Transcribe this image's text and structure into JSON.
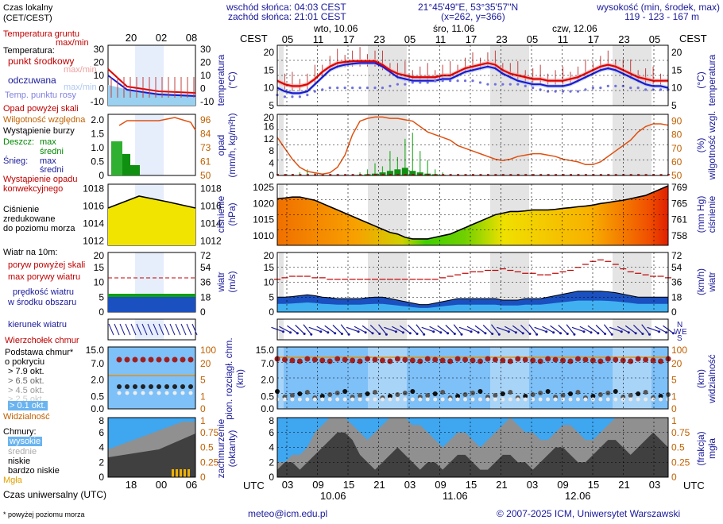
{
  "header": {
    "sunrise": "wschód słońca: 04:03 CEST",
    "sunset": "zachód słońca: 21:01 CEST",
    "coords": "21°45'49\"E, 53°35'57\"N",
    "grid": "(x=262, y=366)",
    "altitude_label": "wysokość (min, środek, max)",
    "altitude_values": "119 - 123 - 167 m",
    "tz_top": "CEST",
    "tz_bottom": "UTC"
  },
  "days_top": [
    "wto, 10.06",
    "śro, 11.06",
    "czw, 12.06"
  ],
  "days_bottom": [
    "10.06",
    "11.06",
    "12.06"
  ],
  "hours_top": [
    "05",
    "11",
    "17",
    "23",
    "05",
    "11",
    "17",
    "23",
    "05",
    "11",
    "17",
    "23",
    "05"
  ],
  "hours_bottom": [
    "03",
    "09",
    "15",
    "21",
    "03",
    "09",
    "15",
    "21",
    "03",
    "09",
    "15",
    "21",
    "03"
  ],
  "legend": {
    "local_time": "Czas lokalny",
    "local_time_2": "(CET/CEST)",
    "legend_hours_top": [
      "20",
      "02",
      "08"
    ],
    "legend_hours_bottom": [
      "18",
      "00",
      "06"
    ],
    "ground_temp": "Temperatura gruntu",
    "ground_temp_2": "max/min",
    "temperature": "Temperatura:",
    "mid_point": "punkt środkowy",
    "max_min": "max/min",
    "felt": "odczuwana",
    "max_min_2": "max/min",
    "dew": "Temp. punktu rosy",
    "precip_above": "Opad powyżej skali",
    "humidity": "Wilgotność względna",
    "storm": "Wystąpienie burzy",
    "rain": "Deszcz:",
    "rain_max": "max",
    "rain_mean": "średni",
    "snow": "Śnieg:",
    "snow_max": "max",
    "snow_mean": "średni",
    "precip_occ": "Wystąpienie opadu",
    "precip_occ_2": "konwekcyjnego",
    "pressure": "Ciśnienie",
    "pressure_2": "zredukowane",
    "pressure_3": "do poziomu morza",
    "wind": "Wiatr na 10m:",
    "gust_above": "poryw powyżej skali",
    "gust_max": "max porywy wiatru",
    "wind_speed": "prędkość wiatru",
    "wind_speed_2": "w środku obszaru",
    "wind_dir": "kierunek wiatru",
    "cloud_top": "Wierzchołek chmur",
    "cloud_base": "Podstawa chmur*",
    "cloud_base_2": "o pokryciu",
    "okt79": "> 7.9 okt.",
    "okt65": "> 6.5 okt.",
    "okt45": "> 4.5 okt.",
    "okt25": "> 2.5 okt.",
    "okt01": "> 0.1 okt.",
    "visibility": "Widzialność",
    "clouds": "Chmury:",
    "high": "wysokie",
    "mid": "średnie",
    "low": "niskie",
    "very_low": "bardzo niskie",
    "fog": "Mgła",
    "utc": "Czas uniwersalny (UTC)",
    "footnote": "* powyżej poziomu morza"
  },
  "axis_labels": {
    "temp_l": "temperatura",
    "temp_l2": "(°C)",
    "temp_r": "temperatura",
    "temp_r2": "(°C)",
    "precip_l": "opad",
    "precip_l2": "(mm/h, kg/m²h)",
    "precip_r": "wilgotność wzgl.",
    "precip_r2": "(%)",
    "press_l": "ciśnienie",
    "press_l2": "(hPa)",
    "press_r": "ciśnienie",
    "press_r2": "(mm Hg)",
    "wind_l": "wiatr",
    "wind_l2": "(m/s)",
    "wind_r": "wiatr",
    "wind_r2": "(km/h)",
    "cloud_l": "pion. rozciągł. chm.",
    "cloud_l2": "(km)",
    "cloud_r": "widzialność",
    "cloud_r2": "(km)",
    "cover_l": "zachmurzenie",
    "cover_l2": "(oktanty)",
    "cover_r": "mgła",
    "cover_r2": "(frakcja)"
  },
  "ticks": {
    "temp_l": [
      "20",
      "15",
      "10",
      "5"
    ],
    "temp_r": [
      "20",
      "15",
      "10",
      "5"
    ],
    "precip_l": [
      "20",
      "16",
      "12",
      "8",
      "4",
      "0"
    ],
    "precip_r": [
      "90",
      "80",
      "70",
      "60",
      "50"
    ],
    "press_l": [
      "1025",
      "1020",
      "1015",
      "1010"
    ],
    "press_r": [
      "769",
      "765",
      "761",
      "758"
    ],
    "wind_l": [
      "20",
      "15",
      "10",
      "5",
      "0"
    ],
    "wind_r": [
      "72",
      "54",
      "36",
      "18",
      "0"
    ],
    "cloud_l": [
      "15.0",
      "7.0",
      "2.0",
      "0.5",
      "0.0"
    ],
    "cloud_r": [
      "100",
      "20",
      "5",
      "1",
      "0"
    ],
    "cover_l": [
      "8",
      "6",
      "4",
      "2",
      "0"
    ],
    "cover_r": [
      "1",
      "0.75",
      "0.5",
      "0.25",
      "0"
    ],
    "leg_temp_l": [
      "30",
      "20",
      "10",
      "0",
      "-10"
    ],
    "leg_temp_r": [
      "30",
      "20",
      "10",
      "0",
      "-10"
    ],
    "leg_precip_l": [
      "2.0",
      "1.5",
      "1.0",
      "0.5",
      "0"
    ],
    "leg_precip_r": [
      "96",
      "84",
      "73",
      "61",
      "50"
    ],
    "leg_press_l": [
      "1018",
      "1016",
      "1014",
      "1012"
    ],
    "leg_press_r": [
      "1018",
      "1016",
      "1014",
      "1012"
    ],
    "leg_wind_l": [
      "20",
      "15",
      "10",
      "5",
      "0"
    ],
    "leg_wind_r": [
      "72",
      "54",
      "36",
      "18",
      "0"
    ],
    "leg_cloud_l": [
      "15.0",
      "7.0",
      "2.0",
      "0.5",
      "0.0"
    ],
    "leg_cloud_r": [
      "100",
      "20",
      "5",
      "1",
      "0"
    ],
    "leg_cover_l": [
      "8",
      "6",
      "4",
      "2",
      "0"
    ],
    "leg_cover_r": [
      "1",
      "0.75",
      "0.5",
      "0.25",
      "0"
    ]
  },
  "footer": {
    "email": "meteo@icm.edu.pl",
    "copyright": "© 2007-2025 ICM, Uniwersytet Warszawski"
  },
  "chart_data": {
    "type": "line",
    "temperature": {
      "ylim": [
        5,
        22
      ],
      "mid": [
        12,
        11,
        10.5,
        10.5,
        11,
        12.5,
        14.5,
        16,
        17,
        17.3,
        17.5,
        17.5,
        17.5,
        17.5,
        16.5,
        15,
        14,
        13.5,
        13,
        13,
        13,
        13,
        13.5,
        13.5,
        14.5,
        15.5,
        16,
        16.5,
        17,
        16.5,
        15,
        14,
        13.5,
        13,
        12.5,
        12.5,
        12,
        12,
        12,
        12.5,
        13,
        14,
        15,
        16,
        16.5,
        16,
        15,
        14,
        13,
        12.5,
        12,
        12,
        12
      ],
      "felt": [
        10,
        9,
        8.5,
        8.5,
        9,
        11,
        13,
        15,
        16,
        16.5,
        16.8,
        17,
        17,
        17,
        16,
        14.5,
        13,
        12.5,
        12,
        12,
        12,
        12,
        12.5,
        12.5,
        13.5,
        14.5,
        15,
        15.5,
        16,
        15.5,
        14,
        13,
        12,
        11.5,
        11,
        11,
        10.5,
        10.5,
        10.5,
        11,
        12,
        13,
        14,
        15,
        15.5,
        15,
        14,
        13,
        12,
        11,
        10.5,
        10.5,
        10
      ],
      "dew": [
        8,
        7.5,
        7.5,
        7.5,
        8,
        9,
        9.5,
        10,
        10,
        10,
        10,
        10,
        10,
        10,
        10,
        10.5,
        11,
        11,
        11.5,
        11.5,
        11.5,
        12,
        12,
        12,
        12,
        12,
        12,
        11.5,
        11,
        11,
        11,
        11,
        11,
        10.5,
        10,
        9.5,
        9,
        9,
        9,
        9,
        9,
        9.5,
        10,
        10,
        10.5,
        10.5,
        10.5,
        10,
        10,
        9.5,
        9.5,
        9.5,
        9.5
      ]
    },
    "precipitation": {
      "ylim": [
        0,
        20
      ],
      "humidity_ylim": [
        50,
        95
      ],
      "humidity": [
        78,
        70,
        62,
        56,
        53,
        52,
        51,
        52,
        56,
        65,
        80,
        90,
        92,
        93,
        93,
        92,
        92,
        91,
        90,
        86,
        82,
        80,
        78,
        76,
        72,
        70,
        68,
        66,
        64,
        62,
        61,
        62,
        64,
        65,
        66,
        66,
        65,
        64,
        62,
        61,
        60,
        58,
        58,
        60,
        64,
        68,
        72,
        76,
        82,
        86,
        88,
        88,
        87
      ],
      "rain_mean": [
        0,
        0,
        0,
        0,
        0,
        0,
        0,
        0,
        0,
        0,
        0,
        0.2,
        0.4,
        0.6,
        1,
        1.5,
        2,
        2.5,
        1.5,
        1,
        0.6,
        0.4,
        0.2,
        0,
        0,
        0,
        0,
        0,
        0,
        0,
        0,
        0,
        0,
        0,
        0,
        0,
        0,
        0,
        0,
        0,
        0,
        0,
        0,
        0,
        0,
        0,
        0,
        0,
        0,
        0,
        0,
        0,
        0
      ],
      "rain_max": [
        0,
        0,
        0.5,
        1,
        2,
        1,
        0.5,
        0,
        0,
        0,
        0,
        1,
        2,
        4,
        3,
        8,
        6,
        12,
        14,
        8,
        5,
        2,
        1,
        0,
        0,
        0,
        0,
        0,
        0,
        0,
        0,
        0,
        0,
        0,
        0,
        0,
        0,
        0,
        0,
        0,
        0,
        0,
        0,
        0,
        0,
        0,
        0,
        0,
        0,
        0,
        0,
        0,
        0
      ]
    },
    "pressure": {
      "ylim": [
        1007,
        1026
      ],
      "values": [
        1021.5,
        1021.7,
        1022,
        1022,
        1021.5,
        1021,
        1020,
        1019,
        1018,
        1017,
        1016,
        1015,
        1014,
        1013,
        1012,
        1011,
        1010.5,
        1009.5,
        1009,
        1009,
        1009,
        1009.5,
        1010,
        1010.5,
        1011.5,
        1012.5,
        1013.5,
        1014.5,
        1015.5,
        1016.5,
        1017,
        1017.5,
        1017.5,
        1017.7,
        1018,
        1018,
        1018,
        1018.2,
        1018.5,
        1018.7,
        1019,
        1019.2,
        1019.5,
        1020,
        1020.3,
        1020.7,
        1021,
        1021.5,
        1022,
        1022.5,
        1023.5,
        1024.5,
        1025.5
      ]
    },
    "wind": {
      "ylim": [
        0,
        20
      ],
      "gust": [
        11,
        11.5,
        12,
        12,
        12,
        11.5,
        11.5,
        11,
        11,
        11,
        11,
        11,
        11,
        11,
        11,
        11,
        11,
        11,
        11,
        11,
        11,
        11,
        11.5,
        12,
        12.5,
        13,
        13.5,
        13.5,
        14,
        14,
        14.5,
        14,
        13.5,
        13,
        13,
        12.5,
        12.5,
        13,
        13.5,
        14,
        15,
        16,
        17,
        17.5,
        17,
        16,
        14.5,
        13.5,
        13,
        12.5,
        12,
        12,
        11.5
      ],
      "speed": [
        5,
        5,
        5.2,
        5.5,
        5.8,
        5.5,
        5,
        4.8,
        4.5,
        4.5,
        4.5,
        4.5,
        4.8,
        5,
        5,
        4.5,
        4,
        3.5,
        3,
        2.5,
        2.5,
        3,
        3.5,
        4,
        4.5,
        4.5,
        4.5,
        4.5,
        4.5,
        4.5,
        4,
        4,
        4,
        4.5,
        4.5,
        4.5,
        5,
        5.5,
        6,
        6.5,
        7,
        7,
        7,
        7,
        6.8,
        6.5,
        6,
        5.5,
        5,
        5,
        5,
        5,
        5
      ]
    },
    "clouds": {
      "ylim_km": [
        0,
        15
      ],
      "visibility_ylim_km": [
        0,
        100
      ]
    },
    "cover": {
      "ylim": [
        0,
        8
      ],
      "high": [
        2,
        2,
        3,
        3,
        4,
        6,
        7,
        8,
        8,
        8,
        7,
        6,
        5,
        6,
        7,
        8,
        8,
        8,
        7,
        7,
        6,
        5,
        4,
        5,
        6,
        6,
        5,
        4,
        5,
        6,
        7,
        8,
        7,
        6,
        6,
        5,
        5,
        6,
        7,
        7,
        6,
        5,
        5,
        6,
        7,
        8,
        8,
        8,
        8,
        8,
        8,
        8,
        8
      ],
      "low": [
        1,
        2,
        2,
        1,
        2,
        3,
        4,
        5,
        6,
        6,
        5,
        3,
        2,
        1,
        2,
        3,
        4,
        3,
        2,
        1,
        2,
        2,
        1,
        2,
        3,
        3,
        2,
        1,
        1,
        2,
        3,
        3,
        2,
        2,
        1,
        2,
        3,
        4,
        4,
        3,
        2,
        2,
        3,
        4,
        5,
        5,
        4,
        3,
        4,
        5,
        6,
        5,
        4
      ]
    }
  }
}
